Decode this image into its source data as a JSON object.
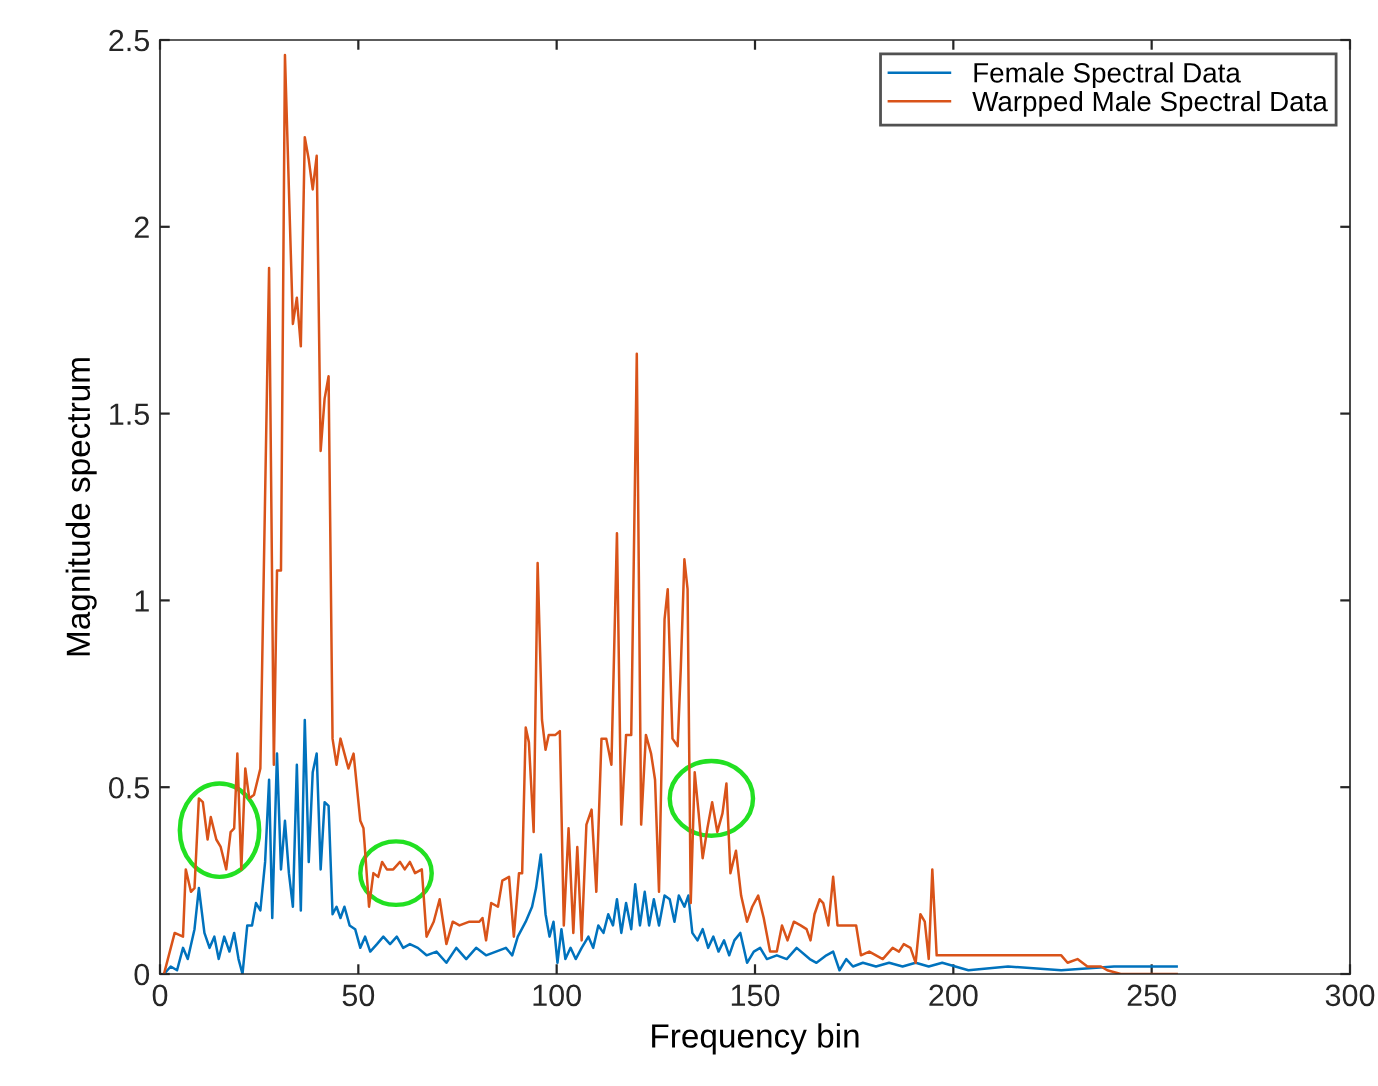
{
  "chart_data": {
    "type": "line",
    "xlabel": "Frequency bin",
    "ylabel": "Magnitude spectrum",
    "xlim": [
      0,
      300
    ],
    "ylim": [
      0,
      2.5
    ],
    "xticks": [
      0,
      50,
      100,
      150,
      200,
      250,
      300
    ],
    "yticks": [
      0,
      0.5,
      1,
      1.5,
      2,
      2.5
    ],
    "grid": false,
    "legend": "top right",
    "line_style": "solid",
    "series": [
      {
        "name": "Female Spectral Data",
        "color": "#0072bd",
        "x": [
          1,
          2.7,
          4.3,
          5.8,
          7,
          8.7,
          9.8,
          11.2,
          12.5,
          13.7,
          14.8,
          16.2,
          17.5,
          18.7,
          19.8,
          20.8,
          22,
          23.2,
          24.2,
          25.3,
          26.5,
          27.5,
          28.3,
          29.5,
          30.5,
          31.5,
          32.5,
          33.5,
          34.5,
          35.5,
          36.5,
          37.5,
          38.5,
          39.5,
          40.5,
          41.5,
          42.5,
          43.5,
          44.5,
          45.5,
          46.5,
          47.8,
          49.2,
          50.5,
          51.7,
          53,
          54.7,
          56.3,
          58,
          59.7,
          61.3,
          63,
          65,
          67.2,
          69.7,
          72.2,
          74.7,
          77.2,
          79.7,
          82.2,
          84.7,
          87.2,
          88.8,
          90.2,
          92.2,
          93.8,
          94.8,
          96,
          97.2,
          98.2,
          99.2,
          100.2,
          101.2,
          102.2,
          103.5,
          104.8,
          106.3,
          108,
          109.2,
          110.5,
          111.8,
          113,
          114.2,
          115.2,
          116.3,
          117.5,
          118.8,
          119.8,
          121,
          122.2,
          123.3,
          124.5,
          125.8,
          127.2,
          128.5,
          129.7,
          130.8,
          132.2,
          133.2,
          134.2,
          135.5,
          136.8,
          138.2,
          139.5,
          140.8,
          142.2,
          143.5,
          144.8,
          146.3,
          148,
          149.7,
          151.3,
          153,
          155.5,
          158,
          160.5,
          163.8,
          165.5,
          168,
          169.7,
          171.3,
          173,
          174.7,
          177.2,
          180.5,
          183.8,
          187.2,
          190.5,
          193.8,
          197.2,
          203.8,
          213.8,
          227.2,
          240.5,
          256.3
        ],
        "values": [
          0,
          0.02,
          0.01,
          0.07,
          0.04,
          0.12,
          0.23,
          0.11,
          0.07,
          0.1,
          0.04,
          0.1,
          0.06,
          0.11,
          0.04,
          0,
          0.13,
          0.13,
          0.19,
          0.17,
          0.3,
          0.52,
          0.15,
          0.59,
          0.28,
          0.41,
          0.27,
          0.18,
          0.56,
          0.17,
          0.68,
          0.3,
          0.54,
          0.59,
          0.28,
          0.46,
          0.45,
          0.16,
          0.18,
          0.15,
          0.18,
          0.13,
          0.12,
          0.07,
          0.1,
          0.06,
          0.08,
          0.1,
          0.08,
          0.1,
          0.07,
          0.08,
          0.07,
          0.05,
          0.06,
          0.03,
          0.07,
          0.04,
          0.07,
          0.05,
          0.06,
          0.07,
          0.05,
          0.1,
          0.14,
          0.18,
          0.23,
          0.32,
          0.16,
          0.1,
          0.14,
          0.03,
          0.12,
          0.04,
          0.07,
          0.04,
          0.07,
          0.1,
          0.07,
          0.13,
          0.11,
          0.16,
          0.13,
          0.2,
          0.11,
          0.19,
          0.12,
          0.24,
          0.13,
          0.22,
          0.13,
          0.2,
          0.13,
          0.21,
          0.2,
          0.14,
          0.21,
          0.18,
          0.21,
          0.11,
          0.09,
          0.12,
          0.07,
          0.1,
          0.06,
          0.09,
          0.05,
          0.09,
          0.11,
          0.03,
          0.06,
          0.07,
          0.04,
          0.05,
          0.04,
          0.07,
          0.04,
          0.03,
          0.05,
          0.06,
          0.01,
          0.04,
          0.02,
          0.03,
          0.02,
          0.03,
          0.02,
          0.03,
          0.02,
          0.03,
          0.01,
          0.02,
          0.01,
          0.02,
          0.02
        ]
      },
      {
        "name": "Warpped Male Spectral Data",
        "color": "#d95319",
        "x": [
          1,
          3.7,
          5.8,
          6.5,
          7.8,
          8.7,
          9.8,
          10.8,
          12,
          12.8,
          14.2,
          15.3,
          16.7,
          17.8,
          18.7,
          19.5,
          20.5,
          21.5,
          22.5,
          23.7,
          25.3,
          27.5,
          28.7,
          29.5,
          30.5,
          31.5,
          33.5,
          34.5,
          35.5,
          36.5,
          37.5,
          38.5,
          39.5,
          40.5,
          41.5,
          42.5,
          43.5,
          44.5,
          45.5,
          46.5,
          47.5,
          48.8,
          50.5,
          51.3,
          52.7,
          53.8,
          55,
          56,
          57.2,
          58.8,
          60.5,
          61.7,
          63,
          64.3,
          66,
          67.2,
          69,
          70.5,
          72.2,
          73.8,
          75.5,
          78,
          80.5,
          81.3,
          82.2,
          83.5,
          85.2,
          86.3,
          88,
          89.2,
          90.5,
          91.3,
          92.2,
          93,
          94.2,
          95.2,
          96.3,
          97.2,
          98,
          99.7,
          100.8,
          101.8,
          103,
          104.2,
          105.2,
          106.3,
          107.5,
          108.8,
          110,
          111.3,
          112.5,
          113.8,
          115.2,
          116.3,
          117.5,
          118.8,
          120.2,
          121.3,
          122.5,
          123.8,
          124.8,
          125.8,
          127.2,
          128,
          129.2,
          130.5,
          131.3,
          132.2,
          133,
          133.8,
          134.8,
          135.8,
          136.8,
          138,
          139.2,
          140.5,
          141.8,
          142.8,
          143.8,
          145.2,
          146.5,
          148,
          149.3,
          150.8,
          152.2,
          153.8,
          155.5,
          156.8,
          158.2,
          159.8,
          161.5,
          163,
          164,
          165,
          166.3,
          167.2,
          168.5,
          169.7,
          170.8,
          173,
          175.5,
          176.7,
          178.8,
          182.2,
          184.7,
          186.3,
          187.5,
          189.2,
          190.5,
          191.7,
          192.8,
          193.8,
          194.7,
          195.8,
          198.8,
          210.5,
          227.2,
          228.8,
          231.3,
          233.8,
          237.2,
          238.8,
          242.2,
          256.3
        ],
        "values": [
          0,
          0.11,
          0.1,
          0.28,
          0.22,
          0.23,
          0.47,
          0.46,
          0.36,
          0.42,
          0.36,
          0.34,
          0.28,
          0.38,
          0.39,
          0.59,
          0.28,
          0.55,
          0.47,
          0.48,
          0.55,
          1.89,
          0.56,
          1.08,
          1.08,
          2.46,
          1.74,
          1.81,
          1.68,
          2.24,
          2.18,
          2.1,
          2.19,
          1.4,
          1.54,
          1.6,
          0.63,
          0.56,
          0.63,
          0.59,
          0.55,
          0.59,
          0.41,
          0.39,
          0.18,
          0.27,
          0.26,
          0.3,
          0.28,
          0.28,
          0.3,
          0.28,
          0.3,
          0.27,
          0.28,
          0.1,
          0.14,
          0.2,
          0.08,
          0.14,
          0.13,
          0.14,
          0.14,
          0.15,
          0.09,
          0.19,
          0.18,
          0.25,
          0.26,
          0.1,
          0.27,
          0.27,
          0.66,
          0.62,
          0.38,
          1.1,
          0.68,
          0.6,
          0.64,
          0.64,
          0.65,
          0.13,
          0.39,
          0.11,
          0.34,
          0.09,
          0.4,
          0.44,
          0.22,
          0.63,
          0.63,
          0.56,
          1.18,
          0.4,
          0.64,
          0.64,
          1.66,
          0.4,
          0.64,
          0.59,
          0.52,
          0.22,
          0.95,
          1.03,
          0.63,
          0.61,
          0.82,
          1.11,
          1.03,
          0.19,
          0.54,
          0.43,
          0.31,
          0.39,
          0.46,
          0.38,
          0.43,
          0.51,
          0.27,
          0.33,
          0.21,
          0.14,
          0.18,
          0.21,
          0.15,
          0.06,
          0.06,
          0.13,
          0.09,
          0.14,
          0.13,
          0.12,
          0.09,
          0.16,
          0.2,
          0.19,
          0.13,
          0.26,
          0.13,
          0.13,
          0.13,
          0.05,
          0.06,
          0.04,
          0.07,
          0.06,
          0.08,
          0.07,
          0.03,
          0.16,
          0.14,
          0.04,
          0.28,
          0.05,
          0.05,
          0.05,
          0.05,
          0.03,
          0.04,
          0.02,
          0.02,
          0.01,
          0,
          0
        ]
      }
    ]
  }
}
